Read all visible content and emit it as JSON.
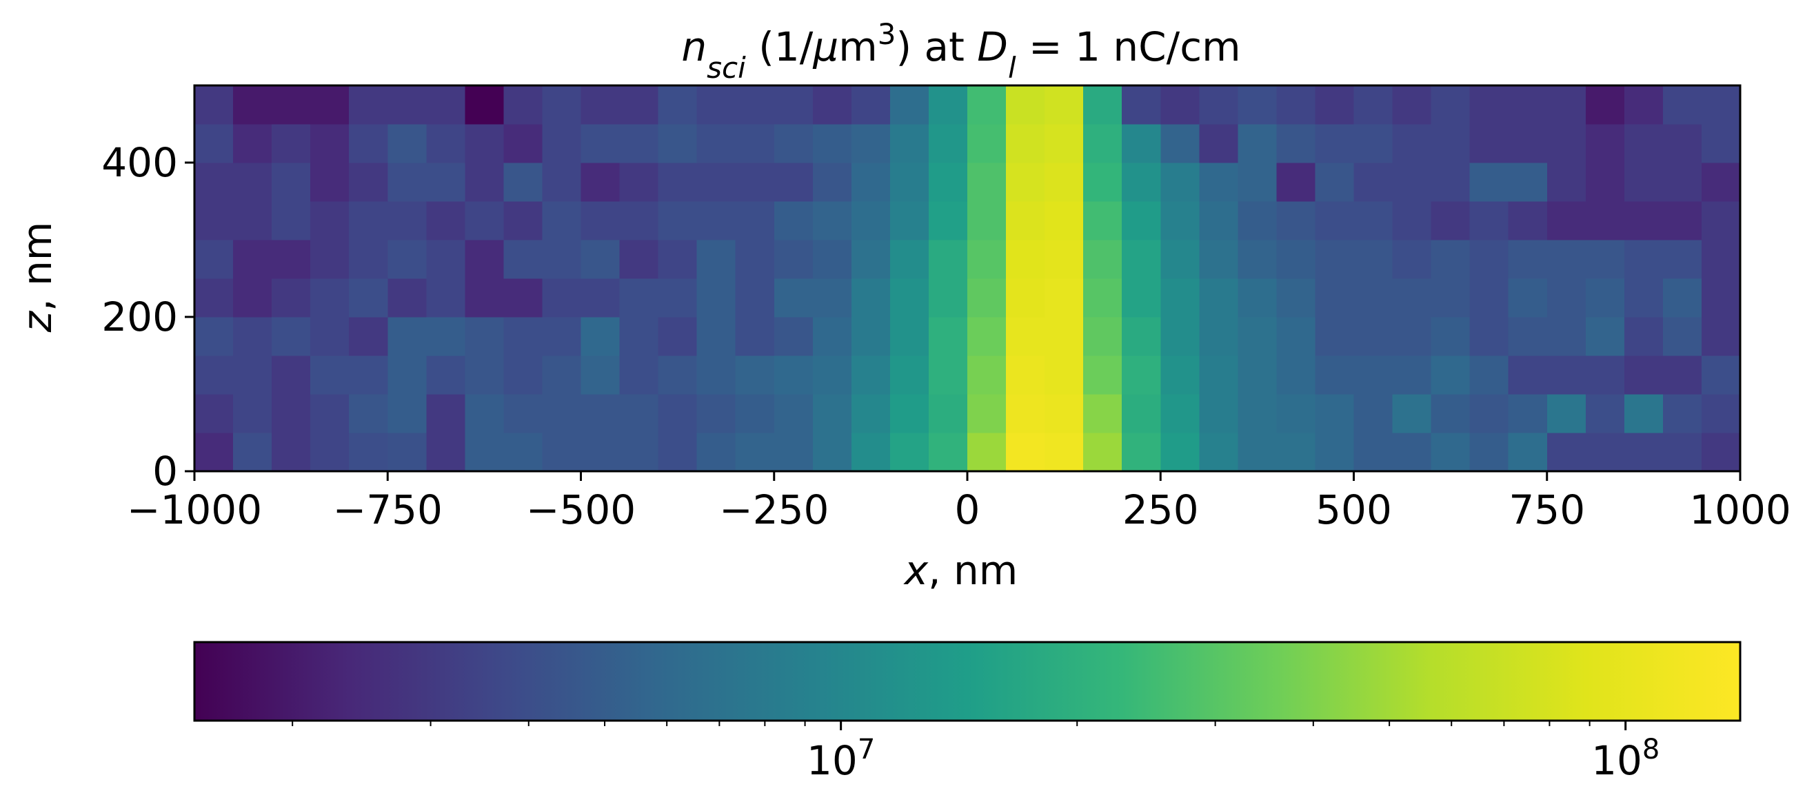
{
  "chart_data": {
    "type": "heatmap",
    "title": {
      "parts": [
        {
          "text": "n",
          "style": "italic"
        },
        {
          "text": "sci",
          "style": "italic-sub"
        },
        {
          "text": " (1/",
          "style": "normal"
        },
        {
          "text": "μ",
          "style": "italic"
        },
        {
          "text": "m",
          "style": "normal"
        },
        {
          "text": "3",
          "style": "sup"
        },
        {
          "text": ") at ",
          "style": "normal"
        },
        {
          "text": "D",
          "style": "italic"
        },
        {
          "text": "l",
          "style": "italic-sub"
        },
        {
          "text": " = 1 nC/cm",
          "style": "normal"
        }
      ]
    },
    "xlabel": {
      "var": "x",
      "rest": ", nm"
    },
    "ylabel": {
      "var": "z",
      "rest": ", nm"
    },
    "x_range": [
      -1000,
      1000
    ],
    "z_range": [
      0,
      500
    ],
    "x_ticks": [
      -1000,
      -750,
      -500,
      -250,
      0,
      250,
      500,
      750,
      1000
    ],
    "x_tick_labels": [
      "−1000",
      "−750",
      "−500",
      "−250",
      "0",
      "250",
      "500",
      "750",
      "1000"
    ],
    "z_ticks": [
      0,
      200,
      400
    ],
    "z_tick_labels": [
      "0",
      "200",
      "400"
    ],
    "cell_size_x_nm": 50,
    "cell_size_z_nm": 50,
    "colormap": "viridis",
    "color_scale": "log",
    "color_range": [
      1500000,
      140000000
    ],
    "colorbar": {
      "orientation": "horizontal",
      "position": "bottom",
      "major_ticks": [
        10000000,
        100000000
      ],
      "major_tick_labels": [
        {
          "base": "10",
          "exp": "7"
        },
        {
          "base": "10",
          "exp": "8"
        }
      ],
      "minor_ticks": [
        2000000,
        3000000,
        4000000,
        5000000,
        6000000,
        7000000,
        8000000,
        9000000,
        20000000,
        30000000,
        40000000,
        50000000,
        60000000,
        70000000,
        80000000,
        90000000
      ]
    },
    "note": "values in 1/μm^3; rows listed from z=0–50 nm upward, 40 columns from x=-1000 to 1000 nm",
    "values": [
      [
        2500000.0,
        4000000.0,
        3000000.0,
        3500000.0,
        4000000.0,
        4200000.0,
        3000000.0,
        5000000.0,
        5000000.0,
        4500000.0,
        4500000.0,
        4500000.0,
        4000000.0,
        5000000.0,
        5500000.0,
        5500000.0,
        7000000.0,
        11000000.0,
        16000000.0,
        21000000.0,
        48000000.0,
        120000000.0,
        115000000.0,
        48000000.0,
        21000000.0,
        14000000.0,
        9000000.0,
        7000000.0,
        7000000.0,
        6000000.0,
        5000000.0,
        5000000.0,
        6000000.0,
        5000000.0,
        6500000.0,
        3500000.0,
        3500000.0,
        3500000.0,
        3500000.0,
        3000000.0
      ],
      [
        3000000.0,
        3500000.0,
        3000000.0,
        3500000.0,
        4500000.0,
        5000000.0,
        3000000.0,
        5000000.0,
        4500000.0,
        4500000.0,
        4500000.0,
        4500000.0,
        4000000.0,
        4500000.0,
        5000000.0,
        5500000.0,
        7000000.0,
        10000000.0,
        14000000.0,
        19000000.0,
        40000000.0,
        110000000.0,
        105000000.0,
        42000000.0,
        19000000.0,
        13000000.0,
        8500000.0,
        7000000.0,
        6500000.0,
        6000000.0,
        5000000.0,
        7000000.0,
        5000000.0,
        4500000.0,
        5000000.0,
        7500000.0,
        4000000.0,
        7500000.0,
        4000000.0,
        3500000.0
      ],
      [
        3500000.0,
        3500000.0,
        3000000.0,
        4000000.0,
        4000000.0,
        5000000.0,
        4000000.0,
        4500000.0,
        4000000.0,
        4500000.0,
        5500000.0,
        4000000.0,
        4500000.0,
        5000000.0,
        5500000.0,
        6000000.0,
        6500000.0,
        9000000.0,
        13000000.0,
        20000000.0,
        38000000.0,
        105000000.0,
        100000000.0,
        35000000.0,
        20000000.0,
        12000000.0,
        8500000.0,
        7000000.0,
        6000000.0,
        5000000.0,
        5000000.0,
        5000000.0,
        6000000.0,
        5000000.0,
        3500000.0,
        3500000.0,
        3500000.0,
        3000000.0,
        3000000.0,
        4000000.0
      ],
      [
        4000000.0,
        3500000.0,
        4000000.0,
        3500000.0,
        3000000.0,
        5000000.0,
        5000000.0,
        4500000.0,
        4000000.0,
        4000000.0,
        6000000.0,
        4000000.0,
        3500000.0,
        5000000.0,
        4000000.0,
        4500000.0,
        6000000.0,
        8000000.0,
        12000000.0,
        20000000.0,
        35000000.0,
        100000000.0,
        100000000.0,
        32000000.0,
        18000000.0,
        11000000.0,
        8000000.0,
        7000000.0,
        6000000.0,
        4500000.0,
        4500000.0,
        4500000.0,
        5000000.0,
        4000000.0,
        4500000.0,
        4500000.0,
        5500000.0,
        3500000.0,
        4500000.0,
        3000000.0
      ],
      [
        3000000.0,
        2500000.0,
        3000000.0,
        3500000.0,
        4000000.0,
        3000000.0,
        3500000.0,
        2500000.0,
        2500000.0,
        3500000.0,
        3500000.0,
        4000000.0,
        4000000.0,
        5000000.0,
        4000000.0,
        5500000.0,
        5500000.0,
        8000000.0,
        12000000.0,
        18000000.0,
        32000000.0,
        95000000.0,
        100000000.0,
        30000000.0,
        16000000.0,
        11000000.0,
        8000000.0,
        6500000.0,
        5500000.0,
        4500000.0,
        4500000.0,
        4500000.0,
        4500000.0,
        4000000.0,
        5000000.0,
        4500000.0,
        5000000.0,
        4000000.0,
        5000000.0,
        3000000.0
      ],
      [
        3500000.0,
        2500000.0,
        2500000.0,
        3000000.0,
        3500000.0,
        4000000.0,
        3500000.0,
        2500000.0,
        4000000.0,
        4000000.0,
        4500000.0,
        3000000.0,
        3500000.0,
        5000000.0,
        4000000.0,
        4500000.0,
        5000000.0,
        7000000.0,
        11000000.0,
        18000000.0,
        30000000.0,
        90000000.0,
        95000000.0,
        28000000.0,
        16000000.0,
        10000000.0,
        7000000.0,
        5500000.0,
        5000000.0,
        4500000.0,
        4500000.0,
        4000000.0,
        4500000.0,
        4000000.0,
        4500000.0,
        4500000.0,
        4500000.0,
        4000000.0,
        4000000.0,
        3000000.0
      ],
      [
        3000000.0,
        3000000.0,
        3500000.0,
        3000000.0,
        3500000.0,
        3500000.0,
        3000000.0,
        3500000.0,
        3000000.0,
        4000000.0,
        3500000.0,
        3500000.0,
        4000000.0,
        4000000.0,
        4000000.0,
        5000000.0,
        5500000.0,
        6500000.0,
        9000000.0,
        15000000.0,
        28000000.0,
        85000000.0,
        90000000.0,
        25000000.0,
        14000000.0,
        9000000.0,
        6500000.0,
        5000000.0,
        4500000.0,
        4000000.0,
        4000000.0,
        3500000.0,
        3000000.0,
        3500000.0,
        3000000.0,
        2500000.0,
        2500000.0,
        2500000.0,
        2500000.0,
        3000000.0
      ],
      [
        3000000.0,
        3000000.0,
        3500000.0,
        2500000.0,
        3000000.0,
        4000000.0,
        4000000.0,
        3000000.0,
        4500000.0,
        3500000.0,
        2500000.0,
        3000000.0,
        3500000.0,
        3500000.0,
        3500000.0,
        3500000.0,
        4500000.0,
        6000000.0,
        8500000.0,
        14000000.0,
        28000000.0,
        80000000.0,
        85000000.0,
        22000000.0,
        12000000.0,
        8500000.0,
        6000000.0,
        5500000.0,
        2500000.0,
        4500000.0,
        3500000.0,
        3500000.0,
        3500000.0,
        5000000.0,
        5000000.0,
        3000000.0,
        2500000.0,
        3000000.0,
        3000000.0,
        2500000.0
      ],
      [
        3500000.0,
        2500000.0,
        3000000.0,
        2500000.0,
        3500000.0,
        4500000.0,
        3500000.0,
        3000000.0,
        2500000.0,
        3500000.0,
        4000000.0,
        4000000.0,
        4500000.0,
        4000000.0,
        4000000.0,
        4500000.0,
        5000000.0,
        5500000.0,
        8000000.0,
        13000000.0,
        26000000.0,
        75000000.0,
        80000000.0,
        20000000.0,
        10000000.0,
        5500000.0,
        3000000.0,
        5500000.0,
        4500000.0,
        4000000.0,
        4000000.0,
        3500000.0,
        3500000.0,
        3000000.0,
        3000000.0,
        3000000.0,
        2500000.0,
        3000000.0,
        3000000.0,
        3500000.0
      ],
      [
        3000000.0,
        2000000.0,
        2000000.0,
        2000000.0,
        3000000.0,
        3000000.0,
        3000000.0,
        1500000.0,
        3000000.0,
        3500000.0,
        3000000.0,
        3000000.0,
        4000000.0,
        3500000.0,
        3500000.0,
        3500000.0,
        3000000.0,
        3500000.0,
        6500000.0,
        12000000.0,
        25000000.0,
        70000000.0,
        75000000.0,
        18000000.0,
        3500000.0,
        3000000.0,
        3500000.0,
        4000000.0,
        3500000.0,
        3000000.0,
        3500000.0,
        3000000.0,
        3500000.0,
        3000000.0,
        3000000.0,
        3000000.0,
        2000000.0,
        2500000.0,
        3500000.0,
        3500000.0
      ]
    ]
  }
}
